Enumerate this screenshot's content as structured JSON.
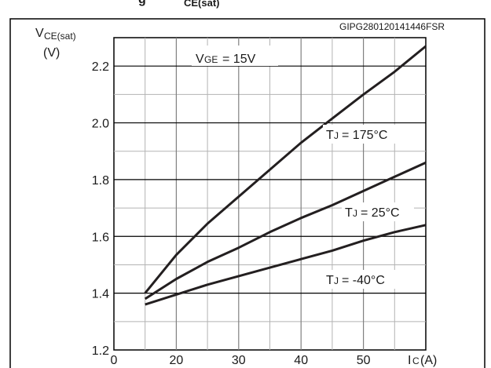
{
  "header_fragment": "g",
  "header_fragment_sub": "CE(sat)",
  "figure_code": "GIPG280120141446FSR",
  "chart_data": {
    "type": "line",
    "y_axis_label": "V",
    "y_axis_label_sub": "CE(sat)",
    "y_axis_unit": "(V)",
    "x_axis_label": "I",
    "x_axis_label_sub": "C",
    "x_axis_unit": "(A)",
    "condition_label": "V",
    "condition_label_sub": "GE",
    "condition_value": "= 15V",
    "x_ticks": [
      "0",
      "20",
      "30",
      "40",
      "50"
    ],
    "y_ticks": [
      "1.2",
      "1.4",
      "1.6",
      "1.8",
      "2.0",
      "2.2"
    ],
    "xlim": [
      10,
      60
    ],
    "ylim": [
      1.2,
      2.3
    ],
    "grid": true,
    "series": [
      {
        "name_prefix": "T",
        "name_sub": "J",
        "name_value": "= 175°C",
        "x": [
          15,
          20,
          25,
          30,
          35,
          40,
          45,
          50,
          55,
          60
        ],
        "y": [
          1.4,
          1.535,
          1.645,
          1.74,
          1.835,
          1.93,
          2.015,
          2.1,
          2.18,
          2.27
        ]
      },
      {
        "name_prefix": "T",
        "name_sub": "J",
        "name_value": "= 25°C",
        "x": [
          15,
          20,
          25,
          30,
          35,
          40,
          45,
          50,
          55,
          60
        ],
        "y": [
          1.38,
          1.45,
          1.51,
          1.56,
          1.615,
          1.665,
          1.71,
          1.76,
          1.81,
          1.86
        ]
      },
      {
        "name_prefix": "T",
        "name_sub": "J",
        "name_value": "= -40°C",
        "x": [
          15,
          20,
          25,
          30,
          35,
          40,
          45,
          50,
          55,
          60
        ],
        "y": [
          1.36,
          1.395,
          1.43,
          1.46,
          1.49,
          1.52,
          1.55,
          1.585,
          1.615,
          1.64
        ]
      }
    ]
  }
}
